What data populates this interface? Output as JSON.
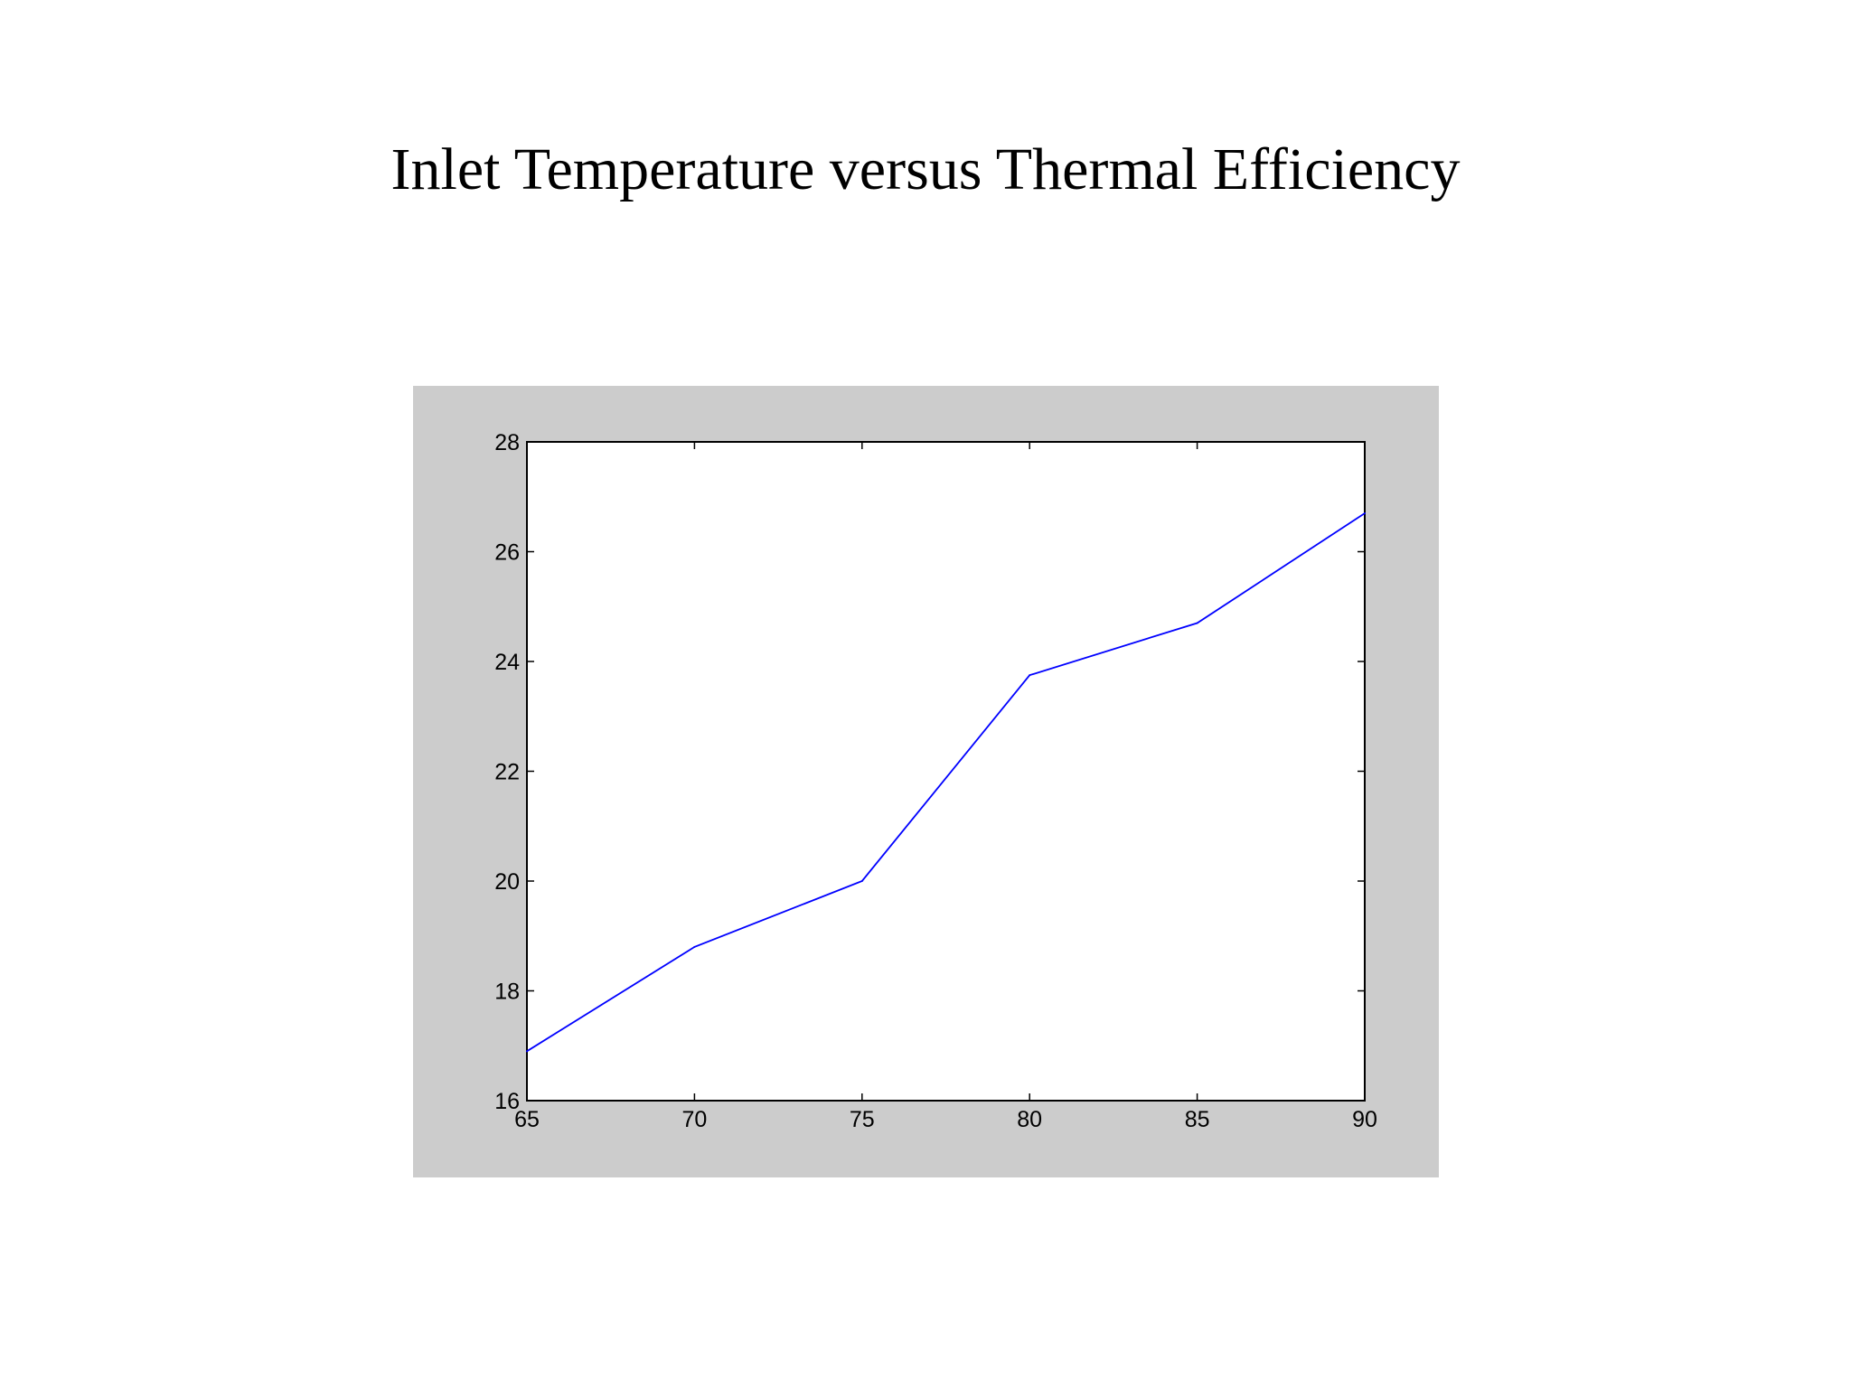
{
  "slide": {
    "title": "Inlet Temperature versus Thermal Efficiency"
  },
  "colors": {
    "figure_background": "#cccccc",
    "axes_background": "#ffffff",
    "axes_color": "#000000",
    "line_color": "#0000ff"
  },
  "chart_data": {
    "type": "line",
    "title": "",
    "xlabel": "",
    "ylabel": "",
    "x": [
      65,
      70,
      75,
      80,
      85,
      90
    ],
    "series": [
      {
        "values": [
          16.9,
          18.8,
          20.0,
          23.75,
          24.7,
          26.7
        ]
      }
    ],
    "xlim": [
      65,
      90
    ],
    "ylim": [
      16,
      28
    ],
    "xticks": [
      65,
      70,
      75,
      80,
      85,
      90
    ],
    "yticks": [
      16,
      18,
      20,
      22,
      24,
      26,
      28
    ],
    "xtick_labels": [
      "65",
      "70",
      "75",
      "80",
      "85",
      "90"
    ],
    "ytick_labels": [
      "16",
      "18",
      "20",
      "22",
      "24",
      "26",
      "28"
    ],
    "grid": false,
    "legend": "none"
  }
}
